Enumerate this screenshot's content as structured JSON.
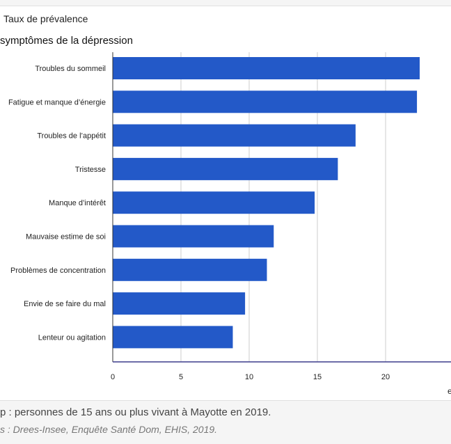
{
  "panel": {
    "title": "Taux de prévalence"
  },
  "chart_data": {
    "type": "bar",
    "orientation": "horizontal",
    "title": "symptômes de la dépression",
    "categories": [
      "Troubles du sommeil",
      "Fatigue et manque d’énergie",
      "Troubles de l’appétit",
      "Tristesse",
      "Manque d’intérêt",
      "Mauvaise estime de soi",
      "Problèmes de concentration",
      "Envie de se faire du mal",
      "Lenteur ou agitation"
    ],
    "values": [
      22.5,
      22.3,
      17.8,
      16.5,
      14.8,
      11.8,
      11.3,
      9.7,
      8.8
    ],
    "xlim": [
      0,
      25
    ],
    "xticks": [
      0,
      5,
      10,
      15,
      20
    ],
    "xlabel": "e",
    "grid": true,
    "bar_color": "#2359c8"
  },
  "footer": {
    "note": "p : personnes de 15 ans ou plus vivant à Mayotte en 2019.",
    "source": "s : Drees-Insee, Enquête Santé Dom, EHIS, 2019."
  }
}
